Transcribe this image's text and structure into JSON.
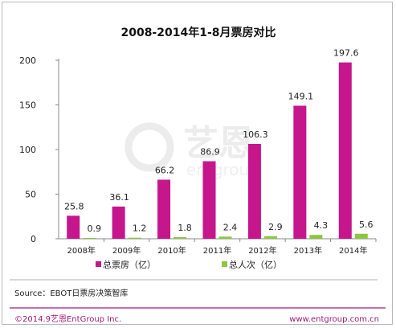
{
  "chart_data": {
    "type": "bar",
    "title": "2008-2014年1-8月票房对比",
    "categories": [
      "2008年",
      "2009年",
      "2010年",
      "2011年",
      "2012年",
      "2013年",
      "2014年"
    ],
    "series": [
      {
        "name": "总票房（亿）",
        "color": "#c5168c",
        "values": [
          25.8,
          36.1,
          66.2,
          86.9,
          106.3,
          149.1,
          197.6
        ]
      },
      {
        "name": "总人次（亿）",
        "color": "#8dc63f",
        "values": [
          0.9,
          1.2,
          1.8,
          2.4,
          2.9,
          4.3,
          5.6
        ]
      }
    ],
    "ylim": [
      0,
      200
    ],
    "yticks": [
      0,
      50,
      100,
      150,
      200
    ],
    "grid": false,
    "legend_position": "bottom"
  },
  "source_text": "Source：EBOT日票房决策智库",
  "footer": {
    "copyright": "©2014.9艺恩EntGroup Inc.",
    "website": "www.entgroup.com.cn"
  },
  "watermark": {
    "brand": "艺恩",
    "sub": "entgroup"
  },
  "colors": {
    "footer_line": "#a0187a"
  }
}
